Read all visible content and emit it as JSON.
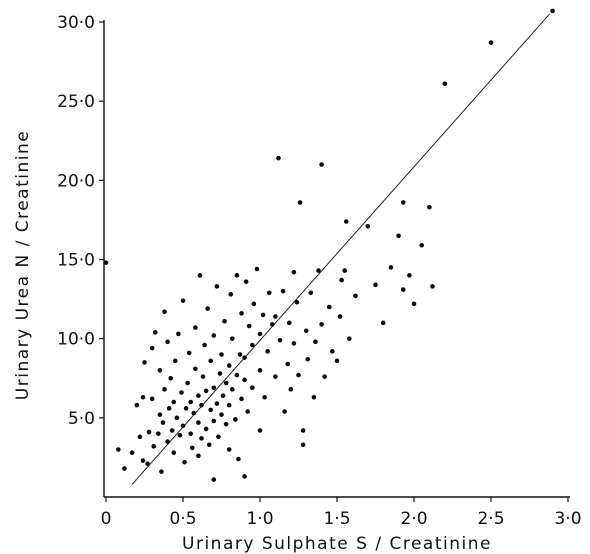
{
  "chart_data": {
    "type": "scatter",
    "title": "",
    "xlabel": "Urinary  Sulphate  S  /  Creatinine",
    "ylabel": "Urinary  Urea  N  /  Creatinine",
    "xlim": [
      0,
      3.0
    ],
    "ylim": [
      0,
      30.0
    ],
    "grid": false,
    "legend": "none",
    "x_ticks": [
      {
        "value": 0,
        "label": "0"
      },
      {
        "value": 0.5,
        "label": "0·5"
      },
      {
        "value": 1.0,
        "label": "1·0"
      },
      {
        "value": 1.5,
        "label": "1·5"
      },
      {
        "value": 2.0,
        "label": "2·0"
      },
      {
        "value": 2.5,
        "label": "2·5"
      },
      {
        "value": 3.0,
        "label": "3·0"
      }
    ],
    "y_ticks": [
      {
        "value": 5,
        "label": "5·0"
      },
      {
        "value": 10,
        "label": "10·0"
      },
      {
        "value": 15,
        "label": "15·0"
      },
      {
        "value": 20,
        "label": "20·0"
      },
      {
        "value": 25,
        "label": "25·0"
      },
      {
        "value": 30,
        "label": "30·0"
      }
    ],
    "regression_line": {
      "x": [
        0.17,
        2.88
      ],
      "y": [
        0.8,
        30.5
      ]
    },
    "series": [
      {
        "points": [
          [
            0.0,
            14.8
          ],
          [
            0.08,
            3.0
          ],
          [
            0.12,
            1.8
          ],
          [
            0.17,
            2.8
          ],
          [
            0.2,
            5.8
          ],
          [
            0.22,
            3.8
          ],
          [
            0.24,
            2.3
          ],
          [
            0.24,
            6.3
          ],
          [
            0.25,
            8.5
          ],
          [
            0.27,
            2.1
          ],
          [
            0.28,
            4.1
          ],
          [
            0.3,
            6.2
          ],
          [
            0.3,
            9.4
          ],
          [
            0.31,
            3.2
          ],
          [
            0.32,
            10.4
          ],
          [
            0.34,
            4.0
          ],
          [
            0.35,
            5.2
          ],
          [
            0.35,
            8.0
          ],
          [
            0.36,
            1.6
          ],
          [
            0.37,
            4.7
          ],
          [
            0.38,
            6.8
          ],
          [
            0.38,
            11.7
          ],
          [
            0.4,
            3.5
          ],
          [
            0.4,
            9.8
          ],
          [
            0.41,
            5.6
          ],
          [
            0.42,
            7.5
          ],
          [
            0.43,
            4.2
          ],
          [
            0.44,
            2.8
          ],
          [
            0.44,
            6.0
          ],
          [
            0.45,
            8.6
          ],
          [
            0.46,
            5.0
          ],
          [
            0.47,
            10.3
          ],
          [
            0.48,
            3.9
          ],
          [
            0.49,
            6.6
          ],
          [
            0.5,
            4.5
          ],
          [
            0.5,
            12.4
          ],
          [
            0.51,
            2.2
          ],
          [
            0.52,
            5.6
          ],
          [
            0.53,
            7.2
          ],
          [
            0.54,
            9.1
          ],
          [
            0.55,
            4.0
          ],
          [
            0.55,
            6.0
          ],
          [
            0.56,
            3.1
          ],
          [
            0.57,
            5.3
          ],
          [
            0.58,
            8.1
          ],
          [
            0.58,
            10.7
          ],
          [
            0.6,
            2.6
          ],
          [
            0.6,
            4.7
          ],
          [
            0.6,
            6.4
          ],
          [
            0.61,
            14.0
          ],
          [
            0.62,
            3.7
          ],
          [
            0.62,
            5.8
          ],
          [
            0.63,
            7.6
          ],
          [
            0.64,
            9.6
          ],
          [
            0.65,
            4.3
          ],
          [
            0.65,
            6.7
          ],
          [
            0.66,
            11.9
          ],
          [
            0.67,
            3.3
          ],
          [
            0.68,
            5.5
          ],
          [
            0.68,
            8.6
          ],
          [
            0.7,
            1.1
          ],
          [
            0.7,
            4.8
          ],
          [
            0.7,
            6.9
          ],
          [
            0.7,
            10.2
          ],
          [
            0.72,
            5.9
          ],
          [
            0.72,
            13.3
          ],
          [
            0.73,
            3.8
          ],
          [
            0.74,
            7.8
          ],
          [
            0.75,
            5.2
          ],
          [
            0.75,
            9.0
          ],
          [
            0.76,
            6.4
          ],
          [
            0.77,
            11.1
          ],
          [
            0.78,
            4.6
          ],
          [
            0.78,
            7.2
          ],
          [
            0.8,
            3.0
          ],
          [
            0.8,
            5.8
          ],
          [
            0.8,
            8.3
          ],
          [
            0.81,
            12.8
          ],
          [
            0.82,
            6.8
          ],
          [
            0.82,
            10.0
          ],
          [
            0.84,
            4.9
          ],
          [
            0.85,
            7.7
          ],
          [
            0.85,
            14.0
          ],
          [
            0.86,
            2.4
          ],
          [
            0.87,
            9.0
          ],
          [
            0.88,
            6.2
          ],
          [
            0.88,
            11.6
          ],
          [
            0.9,
            1.3
          ],
          [
            0.9,
            7.4
          ],
          [
            0.9,
            8.8
          ],
          [
            0.91,
            13.6
          ],
          [
            0.92,
            5.4
          ],
          [
            0.93,
            10.8
          ],
          [
            0.95,
            6.9
          ],
          [
            0.95,
            9.6
          ],
          [
            0.96,
            12.2
          ],
          [
            0.98,
            14.4
          ],
          [
            1.0,
            4.2
          ],
          [
            1.0,
            8.0
          ],
          [
            1.0,
            10.3
          ],
          [
            1.02,
            11.5
          ],
          [
            1.03,
            6.3
          ],
          [
            1.05,
            9.2
          ],
          [
            1.06,
            12.9
          ],
          [
            1.08,
            10.9
          ],
          [
            1.1,
            7.6
          ],
          [
            1.1,
            11.4
          ],
          [
            1.12,
            21.4
          ],
          [
            1.13,
            9.9
          ],
          [
            1.15,
            13.0
          ],
          [
            1.16,
            5.4
          ],
          [
            1.18,
            8.4
          ],
          [
            1.19,
            11.0
          ],
          [
            1.2,
            6.8
          ],
          [
            1.22,
            9.7
          ],
          [
            1.22,
            14.2
          ],
          [
            1.24,
            12.3
          ],
          [
            1.25,
            7.7
          ],
          [
            1.26,
            18.6
          ],
          [
            1.28,
            3.3
          ],
          [
            1.28,
            4.2
          ],
          [
            1.3,
            10.5
          ],
          [
            1.31,
            8.7
          ],
          [
            1.33,
            12.9
          ],
          [
            1.35,
            6.3
          ],
          [
            1.36,
            9.8
          ],
          [
            1.38,
            14.3
          ],
          [
            1.4,
            10.9
          ],
          [
            1.4,
            21.0
          ],
          [
            1.42,
            7.6
          ],
          [
            1.45,
            12.0
          ],
          [
            1.47,
            9.2
          ],
          [
            1.5,
            8.6
          ],
          [
            1.52,
            11.4
          ],
          [
            1.53,
            13.7
          ],
          [
            1.55,
            14.3
          ],
          [
            1.56,
            17.4
          ],
          [
            1.58,
            10.0
          ],
          [
            1.62,
            12.7
          ],
          [
            1.7,
            17.1
          ],
          [
            1.75,
            13.4
          ],
          [
            1.8,
            11.0
          ],
          [
            1.85,
            14.5
          ],
          [
            1.9,
            16.5
          ],
          [
            1.93,
            13.1
          ],
          [
            1.93,
            18.6
          ],
          [
            1.97,
            14.0
          ],
          [
            2.0,
            12.2
          ],
          [
            2.05,
            15.9
          ],
          [
            2.1,
            18.3
          ],
          [
            2.12,
            13.3
          ],
          [
            2.2,
            26.1
          ],
          [
            2.5,
            28.7
          ],
          [
            2.9,
            30.7
          ]
        ]
      }
    ]
  }
}
